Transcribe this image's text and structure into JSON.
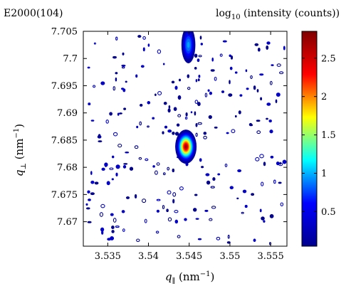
{
  "chart_data": {
    "type": "heatmap",
    "title_left": "E2000(104)",
    "title_right": {
      "prefix": "log",
      "subscript": "10",
      "suffix": " (intensity (counts))"
    },
    "xlabel": {
      "symbol": "q",
      "subscript": "∥",
      "unit": " (nm",
      "unit_exp": "−1",
      "unit_close": ")"
    },
    "ylabel": {
      "symbol": "q",
      "subscript": "⊥",
      "unit": " (nm",
      "unit_exp": "−1",
      "unit_close": ")"
    },
    "xlim": [
      3.532,
      3.557
    ],
    "ylim": [
      7.6655,
      7.705
    ],
    "x_ticks": [
      3.535,
      3.54,
      3.545,
      3.55,
      3.555
    ],
    "x_tick_labels": [
      "3.535",
      "3.54",
      "3.545",
      "3.55",
      "3.555"
    ],
    "y_ticks": [
      7.67,
      7.675,
      7.68,
      7.685,
      7.69,
      7.695,
      7.7,
      7.705
    ],
    "y_tick_labels": [
      "7.67",
      "7.675",
      "7.68",
      "7.685",
      "7.69",
      "7.695",
      "7.7",
      "7.705"
    ],
    "colorbar": {
      "range": [
        0.05,
        2.85
      ],
      "ticks": [
        0.5,
        1,
        1.5,
        2,
        2.5
      ],
      "tick_labels": [
        "0.5",
        "1",
        "1.5",
        "2",
        "2.5"
      ],
      "colormap": "jet",
      "colors": [
        "#00008f",
        "#0000ff",
        "#00ffff",
        "#ffff00",
        "#ff0000",
        "#800000"
      ]
    },
    "peaks": [
      {
        "name": "main-peak",
        "qx": 3.5446,
        "qz": 7.6838,
        "log10_intensity": 2.85,
        "sigma_x": 0.0005,
        "sigma_z": 0.0012
      },
      {
        "name": "upper-streak",
        "qx": 3.5449,
        "qz": 7.7025,
        "log10_intensity": 0.9,
        "sigma_x": 0.0004,
        "sigma_z": 0.0016
      }
    ],
    "background": "isolated noise contours at low intensity (~0.1-0.5) scattered over the whole map"
  }
}
